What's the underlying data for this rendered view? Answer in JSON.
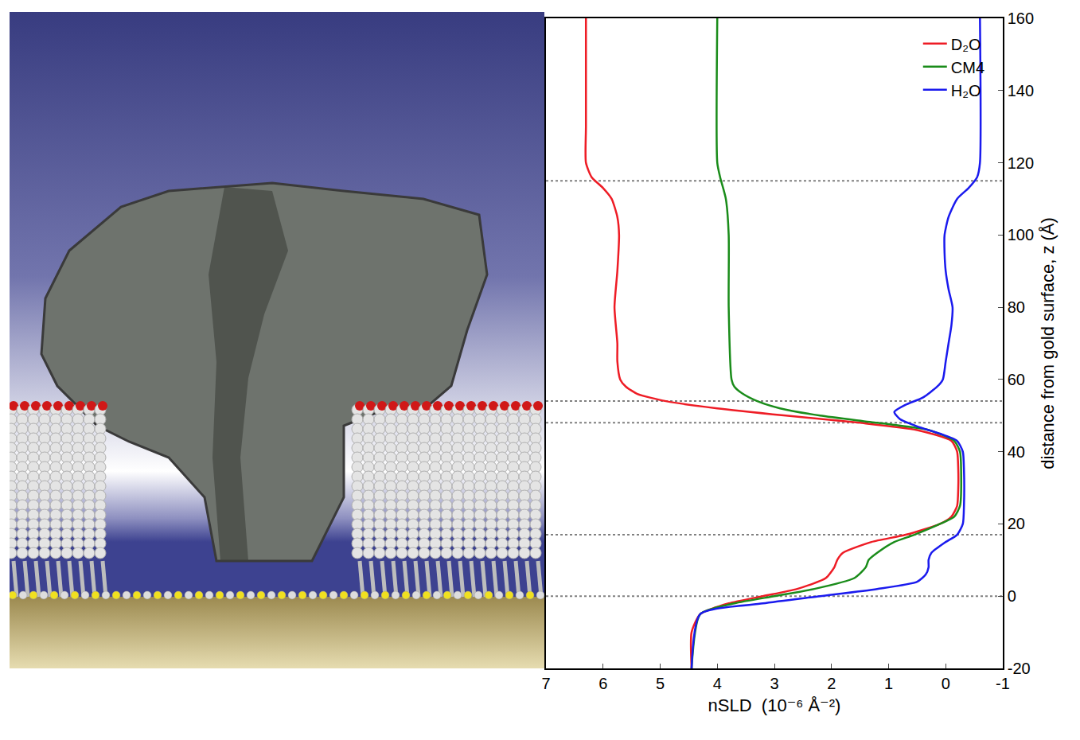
{
  "chart_data": {
    "type": "line",
    "xlabel": "nSLD  (10⁻⁶ Å⁻²)",
    "ylabel": "distance from gold surface, z (Å)",
    "xlim": [
      7,
      -1
    ],
    "ylim": [
      -20,
      160
    ],
    "xticks": [
      7,
      6,
      5,
      4,
      3,
      2,
      1,
      0,
      -1
    ],
    "yticks": [
      -20,
      0,
      20,
      40,
      60,
      80,
      100,
      120,
      140,
      160
    ],
    "grid": false,
    "legend": "top right",
    "reference_lines": {
      "values": [
        0,
        17,
        48,
        54,
        115
      ],
      "color": "#808080",
      "line_style": "dot"
    },
    "series": [
      {
        "name": "D₂O",
        "color": "#ee1c25",
        "y": [
          -20,
          -10,
          -5,
          -2,
          0,
          2,
          5,
          8,
          10,
          12,
          15,
          17,
          20,
          22,
          25,
          30,
          35,
          40,
          43,
          46,
          48,
          50,
          52,
          54,
          56,
          58,
          60,
          65,
          70,
          80,
          90,
          100,
          105,
          110,
          113,
          116,
          120,
          130,
          160
        ],
        "x": [
          4.45,
          4.45,
          4.3,
          3.8,
          3.2,
          2.6,
          2.1,
          1.95,
          1.9,
          1.8,
          1.3,
          0.7,
          0.1,
          -0.1,
          -0.2,
          -0.22,
          -0.22,
          -0.2,
          -0.1,
          0.5,
          1.5,
          2.8,
          4.0,
          4.9,
          5.4,
          5.6,
          5.7,
          5.75,
          5.75,
          5.8,
          5.75,
          5.72,
          5.75,
          5.85,
          6.0,
          6.2,
          6.3,
          6.3,
          6.3
        ]
      },
      {
        "name": "CM4",
        "color": "#1a8c1a",
        "y": [
          -20,
          -5,
          -2,
          0,
          2,
          5,
          8,
          10,
          12,
          15,
          17,
          20,
          22,
          25,
          35,
          40,
          43,
          46,
          48,
          50,
          52,
          54,
          56,
          58,
          60,
          80,
          100,
          110,
          116,
          120,
          160
        ],
        "x": [
          4.45,
          4.3,
          3.7,
          3.0,
          2.3,
          1.6,
          1.4,
          1.35,
          1.2,
          0.9,
          0.55,
          0.1,
          -0.15,
          -0.25,
          -0.27,
          -0.25,
          -0.15,
          0.3,
          1.2,
          2.2,
          2.9,
          3.3,
          3.55,
          3.7,
          3.75,
          3.8,
          3.8,
          3.85,
          3.95,
          4.0,
          4.0
        ]
      },
      {
        "name": "H₂O",
        "color": "#1a1aee",
        "y": [
          -20,
          -5,
          -2,
          0,
          2,
          4,
          6,
          8,
          10,
          12,
          15,
          17,
          20,
          25,
          35,
          40,
          43,
          45,
          47,
          49,
          51,
          53,
          55,
          58,
          60,
          65,
          70,
          75,
          80,
          85,
          90,
          95,
          100,
          105,
          110,
          113,
          116,
          120,
          160
        ],
        "x": [
          4.45,
          4.3,
          3.2,
          2.2,
          1.2,
          0.5,
          0.35,
          0.3,
          0.3,
          0.25,
          0.0,
          -0.2,
          -0.3,
          -0.32,
          -0.32,
          -0.3,
          -0.2,
          0.1,
          0.5,
          0.8,
          0.9,
          0.7,
          0.4,
          0.15,
          0.05,
          0.0,
          -0.05,
          -0.1,
          -0.12,
          -0.05,
          0.0,
          0.02,
          0.02,
          -0.05,
          -0.2,
          -0.4,
          -0.55,
          -0.6,
          -0.6
        ]
      }
    ]
  }
}
